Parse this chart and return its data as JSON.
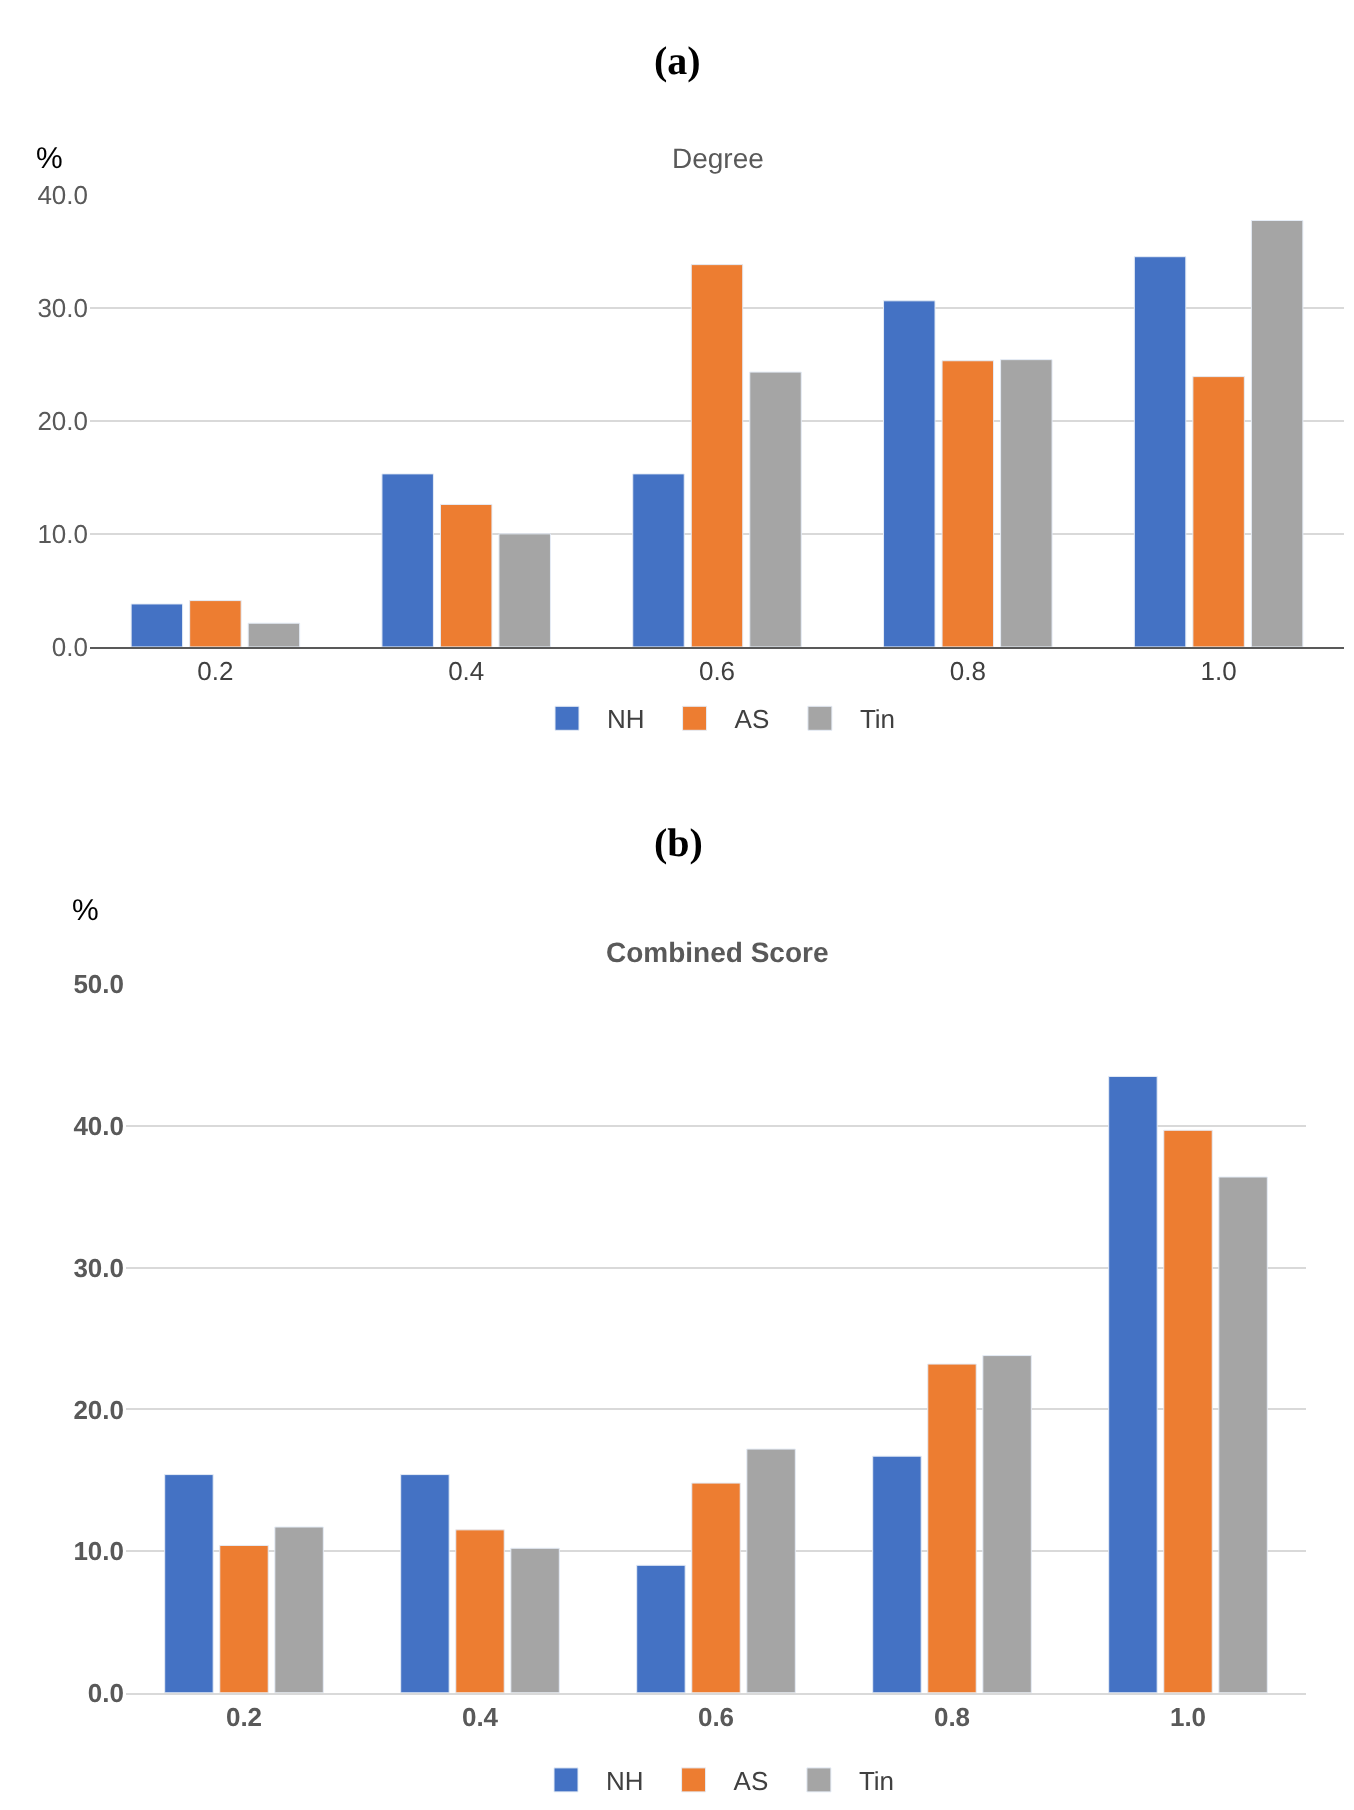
{
  "chart_data": [
    {
      "type": "bar",
      "title": "Degree",
      "ylabel": "%",
      "annotations": [
        "(a)"
      ],
      "categories": [
        "0.2",
        "0.4",
        "0.6",
        "0.8",
        "1.0"
      ],
      "series": [
        {
          "name": "NH",
          "color": "#4472c4",
          "values": [
            3.8,
            15.3,
            15.3,
            30.6,
            34.5
          ]
        },
        {
          "name": "AS",
          "color": "#ed7d31",
          "values": [
            4.1,
            12.6,
            33.8,
            25.3,
            23.9
          ]
        },
        {
          "name": "Tin",
          "color": "#a5a5a5",
          "values": [
            2.1,
            10.0,
            24.3,
            25.4,
            37.7
          ]
        }
      ],
      "ylim": [
        0,
        40
      ],
      "yticks": [
        {
          "value": 0,
          "label": "0.0"
        },
        {
          "value": 10,
          "label": "10.0"
        },
        {
          "value": 20,
          "label": "20.0"
        },
        {
          "value": 30,
          "label": "30.0"
        },
        {
          "value": 40,
          "label": "40.0"
        }
      ],
      "grid": "y",
      "legend": "bottom"
    },
    {
      "type": "bar",
      "title": "Combined Score",
      "ylabel": "%",
      "annotations": [
        "(b)"
      ],
      "categories": [
        "0.2",
        "0.4",
        "0.6",
        "0.8",
        "1.0"
      ],
      "series": [
        {
          "name": "NH",
          "color": "#4472c4",
          "values": [
            15.4,
            15.4,
            9.0,
            16.7,
            43.5
          ]
        },
        {
          "name": "AS",
          "color": "#ed7d31",
          "values": [
            10.4,
            11.5,
            14.8,
            23.2,
            39.7
          ]
        },
        {
          "name": "Tin",
          "color": "#a5a5a5",
          "values": [
            11.7,
            10.2,
            17.2,
            23.8,
            36.4
          ]
        }
      ],
      "ylim": [
        0,
        50
      ],
      "yticks": [
        {
          "value": 0,
          "label": "0.0"
        },
        {
          "value": 10,
          "label": "10.0"
        },
        {
          "value": 20,
          "label": "20.0"
        },
        {
          "value": 30,
          "label": "30.0"
        },
        {
          "value": 40,
          "label": "40.0"
        },
        {
          "value": 50,
          "label": "50.0"
        }
      ],
      "grid": "y",
      "legend": "bottom"
    }
  ]
}
